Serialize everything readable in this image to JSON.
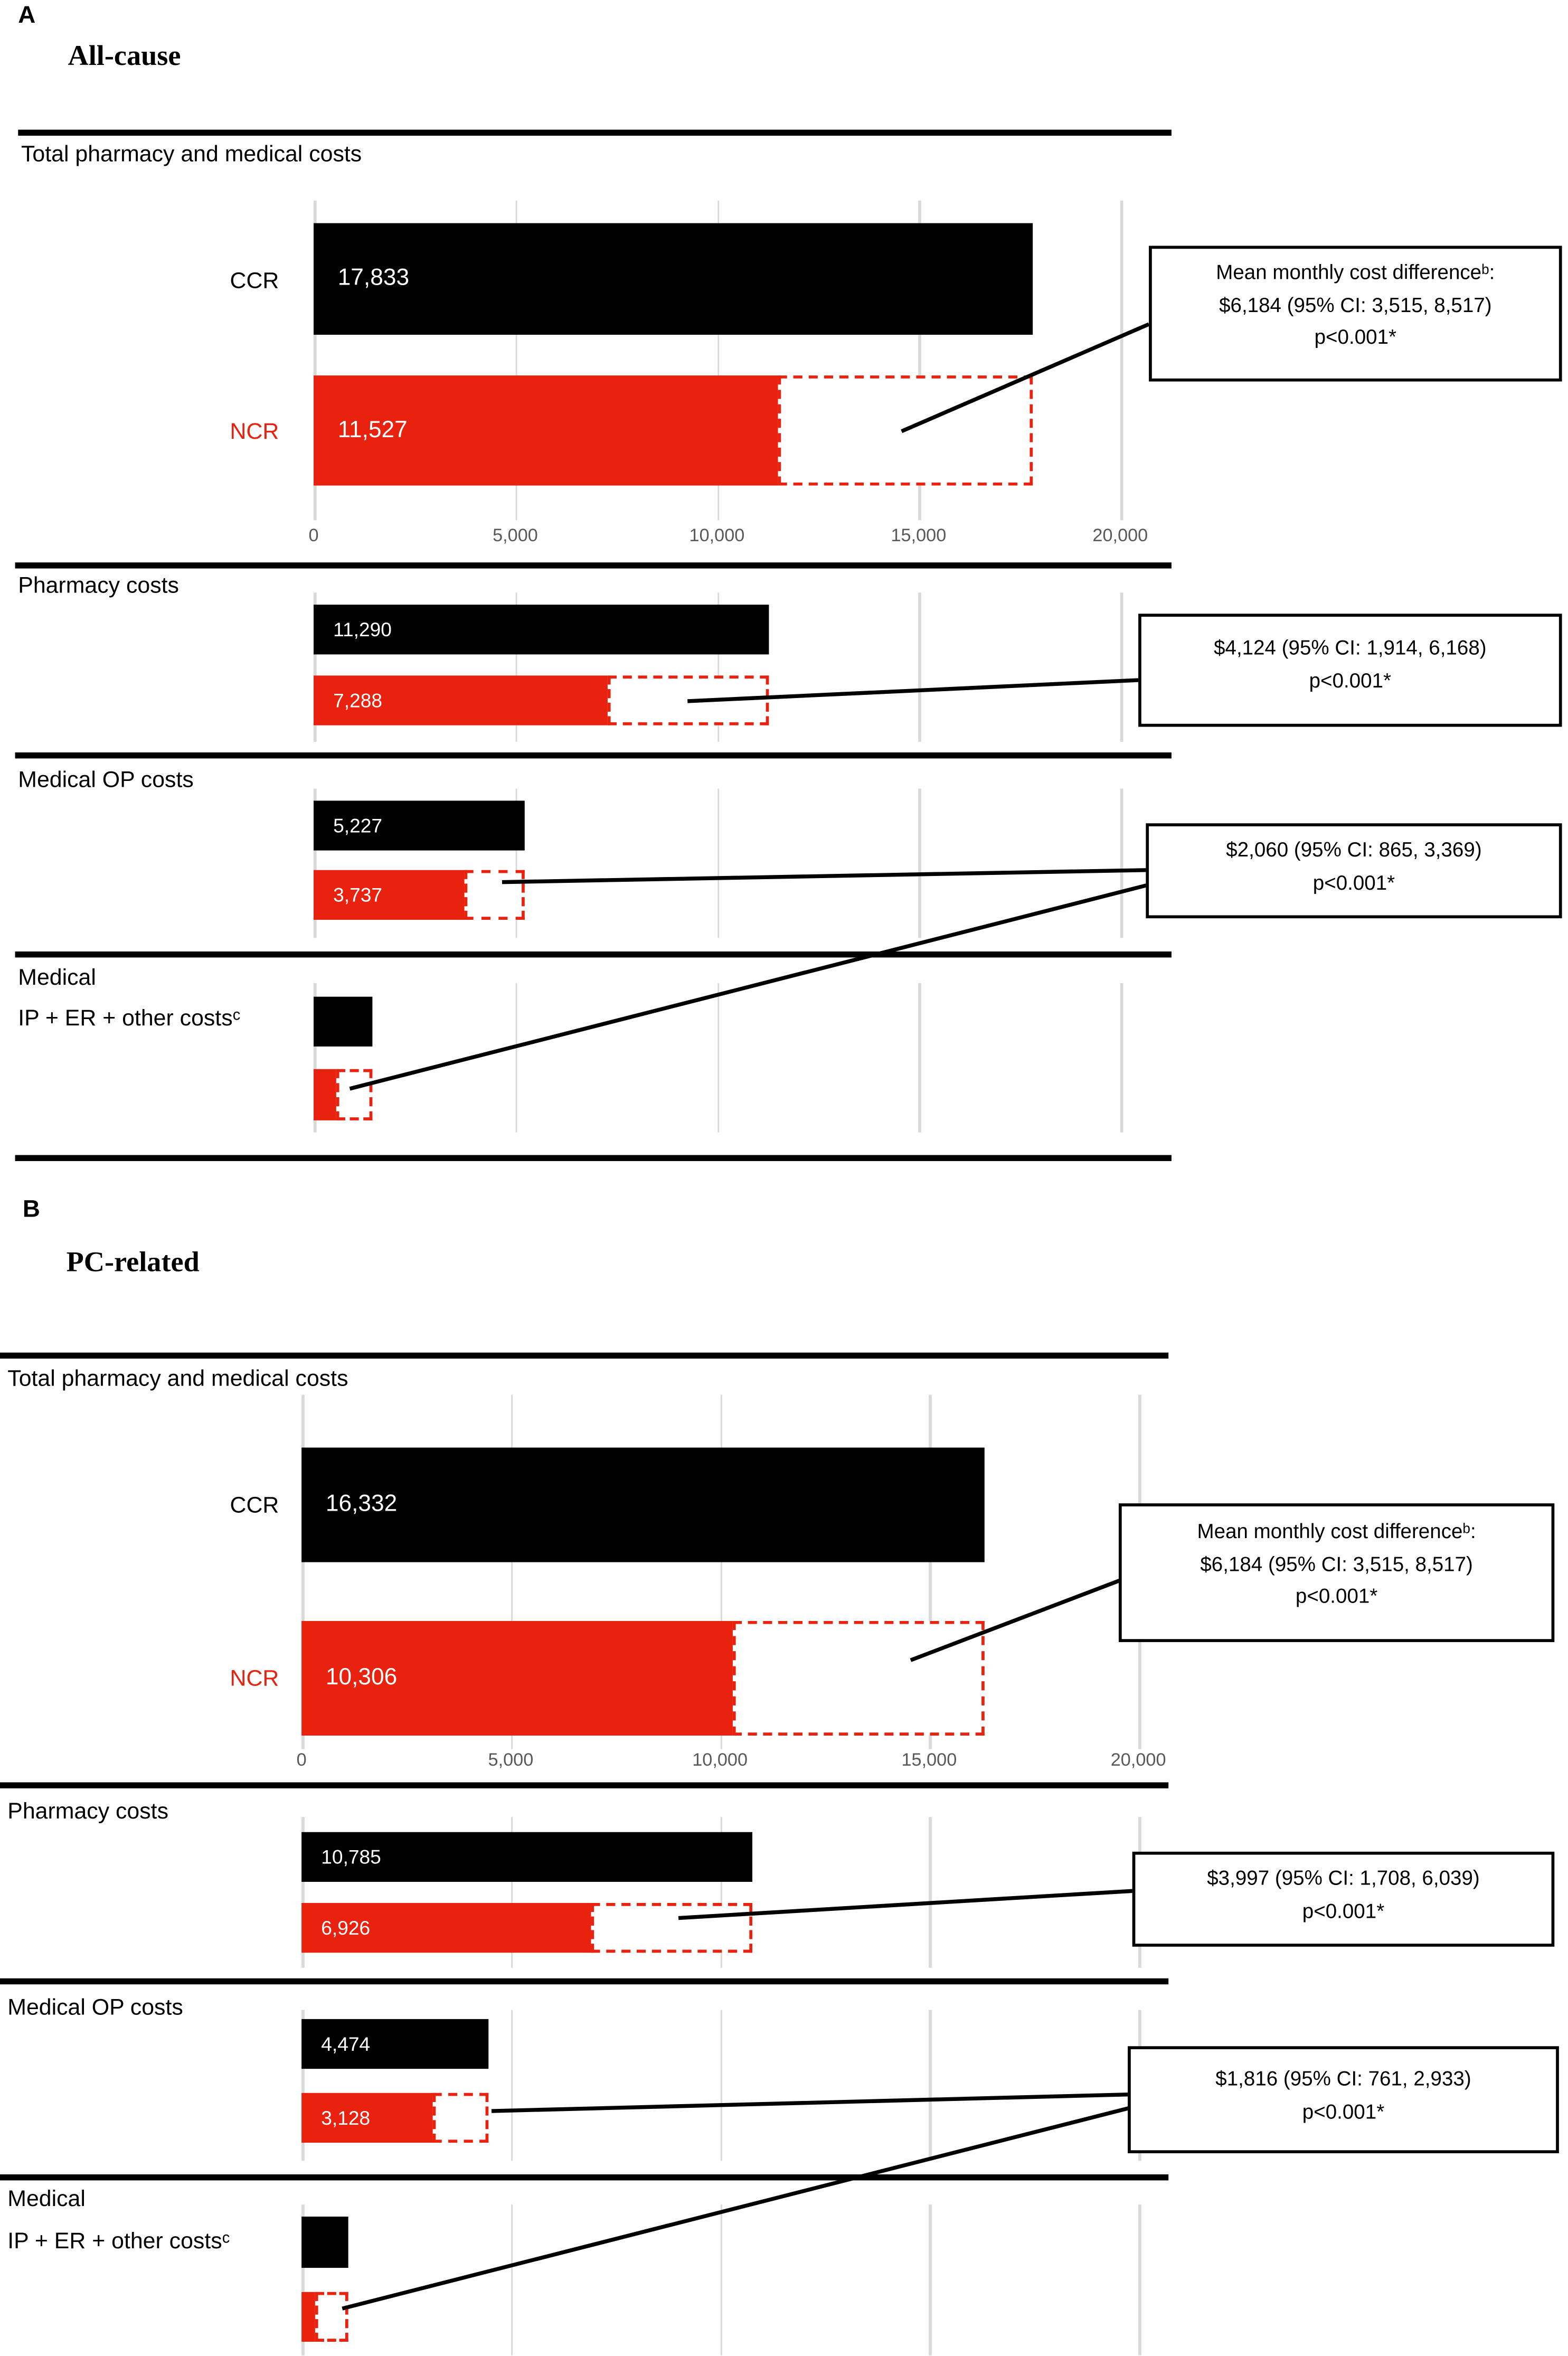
{
  "colors": {
    "ccr_bar": "#000000",
    "ncr_bar": "#e8220e",
    "gridline": "#d9d9d9",
    "tick_text": "#595959",
    "annotation_border": "#000000"
  },
  "chart_data": [
    {
      "type": "bar",
      "orientation": "horizontal",
      "panel_label": "A",
      "title": "All-cause",
      "series": [
        {
          "name": "CCR",
          "color": "#000000"
        },
        {
          "name": "NCR",
          "color": "#e8220e"
        }
      ],
      "x_axis": {
        "min": 0,
        "max": 20000,
        "ticks": [
          0,
          5000,
          10000,
          15000,
          20000
        ],
        "tick_labels": [
          "0",
          "5,000",
          "10,000",
          "15,000",
          "20,000"
        ]
      },
      "dashed_outline_meaning": "dashed red outline extends the NCR bar to the CCR value",
      "sections": [
        {
          "label": "Total pharmacy and medical costs",
          "ccr": 17833,
          "ncr": 11527,
          "ccr_label": "17,833",
          "ncr_label": "11,527",
          "annotation": {
            "lines": [
              "Mean monthly cost differenceᵇ:",
              "$6,184 (95% CI: 3,515, 8,517)",
              "p<0.001*"
            ]
          }
        },
        {
          "label": "Pharmacy costs",
          "ccr": 11290,
          "ncr": 7288,
          "ccr_label": "11,290",
          "ncr_label": "7,288",
          "annotation": {
            "lines": [
              "$4,124 (95% CI: 1,914, 6,168)",
              "p<0.001*"
            ]
          }
        },
        {
          "label": "Medical OP costs",
          "ccr": 5227,
          "ncr": 3737,
          "ccr_label": "5,227",
          "ncr_label": "3,737",
          "annotation": {
            "lines": [
              "$2,060 (95% CI: 865, 3,369)",
              "p<0.001*"
            ]
          }
        },
        {
          "label_line1": "Medical",
          "label_line2": "IP + ER + other costsᶜ",
          "ccr": 1450,
          "ncr": 560,
          "ccr_label": "",
          "ncr_label": "",
          "values_estimated": true
        }
      ]
    },
    {
      "type": "bar",
      "orientation": "horizontal",
      "panel_label": "B",
      "title": "PC-related",
      "series": [
        {
          "name": "CCR",
          "color": "#000000"
        },
        {
          "name": "NCR",
          "color": "#e8220e"
        }
      ],
      "x_axis": {
        "min": 0,
        "max": 20000,
        "ticks": [
          0,
          5000,
          10000,
          15000,
          20000
        ],
        "tick_labels": [
          "0",
          "5,000",
          "10,000",
          "15,000",
          "20,000"
        ]
      },
      "dashed_outline_meaning": "dashed red outline extends the NCR bar to the CCR value",
      "sections": [
        {
          "label": "Total pharmacy and medical costs",
          "ccr": 16332,
          "ncr": 10306,
          "ccr_label": "16,332",
          "ncr_label": "10,306",
          "annotation": {
            "lines": [
              "Mean monthly cost differenceᵇ:",
              "$6,184 (95% CI: 3,515, 8,517)",
              "p<0.001*"
            ]
          }
        },
        {
          "label": "Pharmacy costs",
          "ccr": 10785,
          "ncr": 6926,
          "ccr_label": "10,785",
          "ncr_label": "6,926",
          "annotation": {
            "lines": [
              "$3,997 (95% CI: 1,708, 6,039)",
              "p<0.001*"
            ]
          }
        },
        {
          "label": "Medical OP costs",
          "ccr": 4474,
          "ncr": 3128,
          "ccr_label": "4,474",
          "ncr_label": "3,128",
          "annotation": {
            "lines": [
              "$1,816 (95% CI: 761, 2,933)",
              "p<0.001*"
            ]
          }
        },
        {
          "label_line1": "Medical",
          "label_line2": "IP + ER + other costsᶜ",
          "ccr": 1100,
          "ncr": 310,
          "ccr_label": "",
          "ncr_label": "",
          "values_estimated": true
        }
      ]
    }
  ]
}
